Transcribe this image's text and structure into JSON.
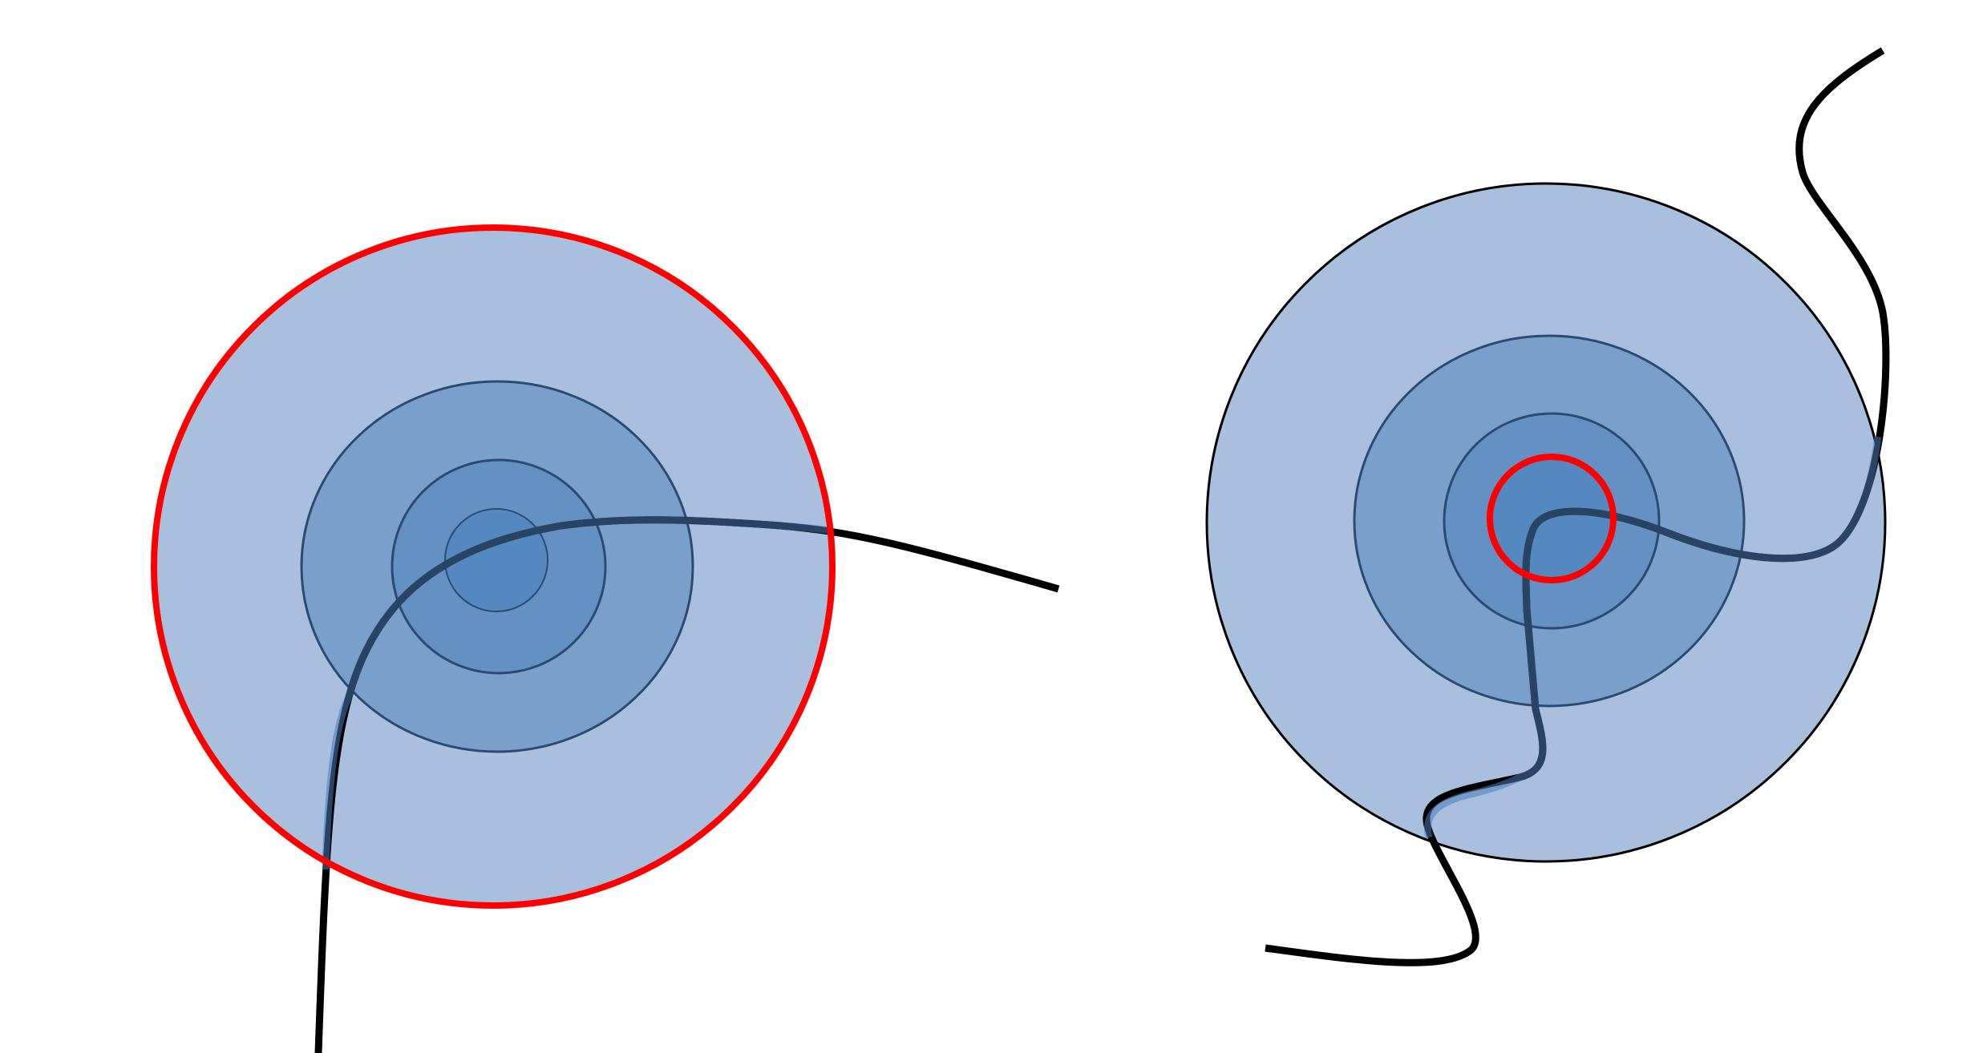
{
  "colors": {
    "background": "#ffffff",
    "outer_fill": "#a8c0dd",
    "middle_fill": "#7a9fcb",
    "inner_fill": "#6590c4",
    "core_fill": "#5588c0",
    "ring_stroke": "#2b4a70",
    "highlight_ring": "#ff0000",
    "curve": "#000000",
    "curve_overlay": "#4a7ab8"
  },
  "diagrams": [
    {
      "name": "left",
      "highlighted_ring": "outermost",
      "ring_count": 4
    },
    {
      "name": "right",
      "highlighted_ring": "innermost",
      "ring_count": 4
    }
  ]
}
